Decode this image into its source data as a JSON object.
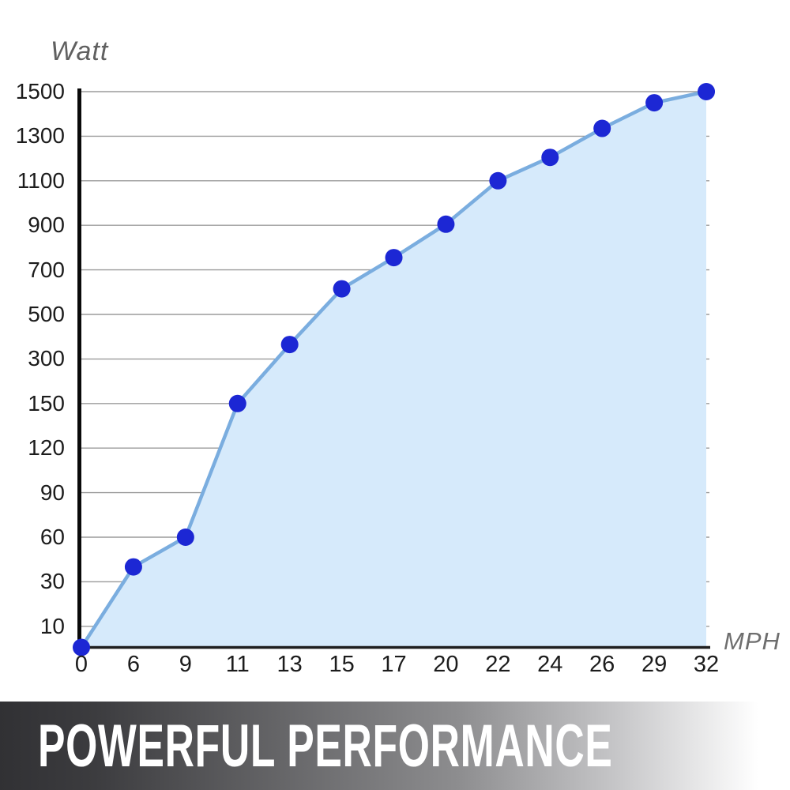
{
  "banner": {
    "title": "POWERFUL PERFORMANCE",
    "gradient_left": "#313134",
    "gradient_mid": "#8d8d8f",
    "gradient_right": "#ffffff",
    "text_color": "#ffffff"
  },
  "chart_data": {
    "type": "area",
    "y_axis_title": "Watt",
    "x_axis_title": "MPH",
    "categories": [
      "0",
      "6",
      "9",
      "11",
      "13",
      "15",
      "17",
      "20",
      "22",
      "24",
      "26",
      "29",
      "32"
    ],
    "values": [
      0,
      40,
      60,
      150,
      365,
      615,
      755,
      905,
      1100,
      1205,
      1335,
      1450,
      1500
    ],
    "y_ticks": [
      10,
      30,
      60,
      90,
      120,
      150,
      300,
      500,
      700,
      900,
      1100,
      1300,
      1500
    ],
    "y_scale_note": "ticks evenly spaced (non-linear value scale), baseline 0 a half step below 10",
    "grid": true,
    "legend": false,
    "colors": {
      "point": "#1c27d4",
      "line": "#7aaddf",
      "fill": "#d6eafb",
      "grid": "#9b9b9b",
      "axis": "#0a0a0a",
      "tick_text": "#1c1c1c",
      "axis_title_text": "#636363"
    }
  }
}
